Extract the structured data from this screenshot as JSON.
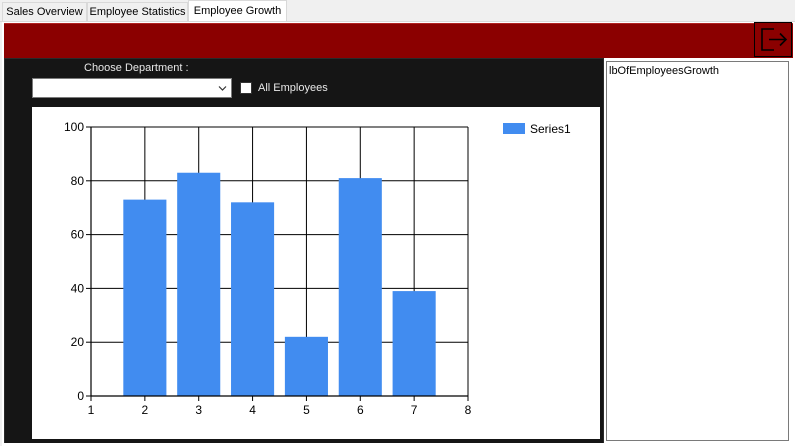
{
  "tabs": [
    {
      "label": "Sales Overview"
    },
    {
      "label": "Employee Statistics"
    },
    {
      "label": "Employee Growth",
      "active": true
    }
  ],
  "header": {
    "color": "#8b0000",
    "logout_icon": "logout-icon"
  },
  "filters": {
    "department_label": "Choose Department :",
    "department_value": "",
    "all_employees_label": "All Employees",
    "all_employees_checked": false
  },
  "side_panel": {
    "label": "lbOfEmployeesGrowth"
  },
  "chart_data": {
    "type": "bar",
    "x": [
      2,
      3,
      4,
      5,
      6,
      7
    ],
    "series": [
      {
        "name": "Series1",
        "values": [
          73,
          83,
          72,
          22,
          81,
          39
        ],
        "color": "#418cf0"
      }
    ],
    "xlim": [
      1,
      8
    ],
    "ylim": [
      0,
      100
    ],
    "xticks": [
      1,
      2,
      3,
      4,
      5,
      6,
      7,
      8
    ],
    "yticks": [
      0,
      20,
      40,
      60,
      80,
      100
    ],
    "title": "",
    "xlabel": "",
    "ylabel": "",
    "grid": true,
    "legend": "top-right"
  }
}
